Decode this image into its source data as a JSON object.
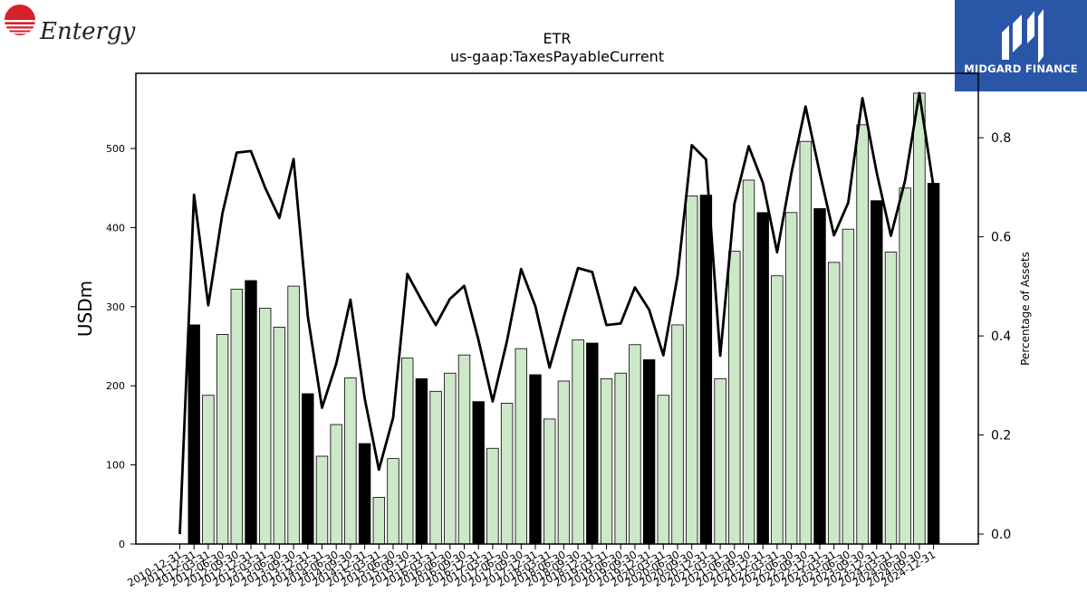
{
  "branding": {
    "left_logo_text": "Entergy",
    "right_logo_text": "MIDGARD FINANCE"
  },
  "chart_data": {
    "type": "bar",
    "title": "ETR",
    "subtitle": "us-gaap:TaxesPayableCurrent",
    "ylabel": "USDm",
    "y2label": "Percentage of Assets",
    "ylim": [
      0,
      595
    ],
    "y2lim": [
      -0.02,
      0.93
    ],
    "yticks": [
      0,
      100,
      200,
      300,
      400,
      500
    ],
    "y2ticks": [
      0.0,
      0.2,
      0.4,
      0.6,
      0.8
    ],
    "categories": [
      "2010-12-31",
      "2011-12-31",
      "2012-03-31",
      "2012-06-30",
      "2012-09-30",
      "2012-12-31",
      "2013-03-31",
      "2013-06-30",
      "2013-09-30",
      "2013-12-31",
      "2014-03-31",
      "2014-06-30",
      "2014-09-30",
      "2014-12-31",
      "2015-03-31",
      "2015-06-30",
      "2015-09-30",
      "2015-12-31",
      "2016-03-31",
      "2016-06-30",
      "2016-09-30",
      "2016-12-31",
      "2017-03-31",
      "2017-06-30",
      "2017-09-30",
      "2017-12-31",
      "2018-03-31",
      "2018-06-30",
      "2018-09-30",
      "2018-12-31",
      "2019-03-31",
      "2019-06-30",
      "2019-09-30",
      "2019-12-31",
      "2020-03-31",
      "2020-06-30",
      "2020-09-30",
      "2020-12-31",
      "2021-03-31",
      "2021-06-30",
      "2021-09-30",
      "2021-12-31",
      "2022-03-31",
      "2022-06-30",
      "2022-09-30",
      "2022-12-31",
      "2023-03-31",
      "2023-06-30",
      "2023-09-30",
      "2023-12-31",
      "2024-03-31",
      "2024-06-30",
      "2024-09-30",
      "2024-12-31"
    ],
    "xtick_labels": [
      "2010-12-31",
      "2011-12-31",
      "2012-03-31",
      "2012-06-30",
      "2012-09-30",
      "2012-12-31",
      "2013-03-31",
      "2013-06-30",
      "2013-09-30",
      "2013-12-31",
      "2014-03-31",
      "2014-06-30",
      "2014-09-30",
      "2014-12-31",
      "2015-03-31",
      "2015-06-30",
      "2015-09-30",
      "2015-12-31",
      "2016-03-31",
      "2016-06-30",
      "2016-09-30",
      "2016-12-31",
      "2017-03-31",
      "2017-06-30",
      "2017-09-30",
      "2017-12-31",
      "2018-03-31",
      "2018-06-30",
      "2018-09-30",
      "2018-12-31",
      "2019-03-31",
      "2019-06-30",
      "2019-09-30",
      "2019-12-31",
      "2020-03-31",
      "2020-06-30",
      "2020-09-30",
      "2020-12-31",
      "2021-03-31",
      "2021-06-30",
      "2021-09-30",
      "2021-12-31",
      "2022-03-31",
      "2022-06-30",
      "2022-09-30",
      "2022-12-31",
      "2023-03-31",
      "2023-06-30",
      "2023-09-30",
      "2023-12-31",
      "2024-03-31",
      "2024-06-30",
      "2024-09-30",
      "2024-12-31"
    ],
    "series": [
      {
        "kind": "bar",
        "axis": "left",
        "values": [
          0,
          277,
          188,
          265,
          322,
          333,
          298,
          274,
          326,
          190,
          111,
          151,
          210,
          127,
          59,
          108,
          235,
          209,
          193,
          216,
          239,
          180,
          121,
          178,
          247,
          214,
          158,
          206,
          258,
          254,
          209,
          216,
          252,
          233,
          188,
          277,
          440,
          441,
          209,
          370,
          460,
          419,
          339,
          419,
          509,
          424,
          356,
          398,
          530,
          434,
          369,
          450,
          570,
          456
        ],
        "fill_colors": [
          "#cde8c8",
          "#000000",
          "#cde8c8",
          "#cde8c8",
          "#cde8c8",
          "#000000",
          "#cde8c8",
          "#cde8c8",
          "#cde8c8",
          "#000000",
          "#cde8c8",
          "#cde8c8",
          "#cde8c8",
          "#000000",
          "#cde8c8",
          "#cde8c8",
          "#cde8c8",
          "#000000",
          "#cde8c8",
          "#cde8c8",
          "#cde8c8",
          "#000000",
          "#cde8c8",
          "#cde8c8",
          "#cde8c8",
          "#000000",
          "#cde8c8",
          "#cde8c8",
          "#cde8c8",
          "#000000",
          "#cde8c8",
          "#cde8c8",
          "#cde8c8",
          "#000000",
          "#cde8c8",
          "#cde8c8",
          "#cde8c8",
          "#000000",
          "#cde8c8",
          "#cde8c8",
          "#cde8c8",
          "#000000",
          "#cde8c8",
          "#cde8c8",
          "#cde8c8",
          "#000000",
          "#cde8c8",
          "#cde8c8",
          "#cde8c8",
          "#000000",
          "#cde8c8",
          "#cde8c8",
          "#cde8c8",
          "#000000"
        ]
      },
      {
        "kind": "line",
        "axis": "right",
        "color": "#000000",
        "values": [
          0.0,
          0.685,
          0.462,
          0.648,
          0.77,
          0.773,
          0.699,
          0.638,
          0.757,
          0.44,
          0.255,
          0.344,
          0.473,
          0.274,
          0.13,
          0.235,
          0.525,
          0.472,
          0.422,
          0.475,
          0.501,
          0.392,
          0.268,
          0.389,
          0.535,
          0.46,
          0.336,
          0.438,
          0.537,
          0.529,
          0.422,
          0.425,
          0.498,
          0.453,
          0.361,
          0.521,
          0.785,
          0.756,
          0.36,
          0.667,
          0.783,
          0.709,
          0.569,
          0.728,
          0.863,
          0.729,
          0.603,
          0.669,
          0.88,
          0.73,
          0.602,
          0.714,
          0.89,
          0.7
        ]
      }
    ],
    "bar_edge_color": "#000000",
    "grid": false,
    "legend": "none"
  }
}
